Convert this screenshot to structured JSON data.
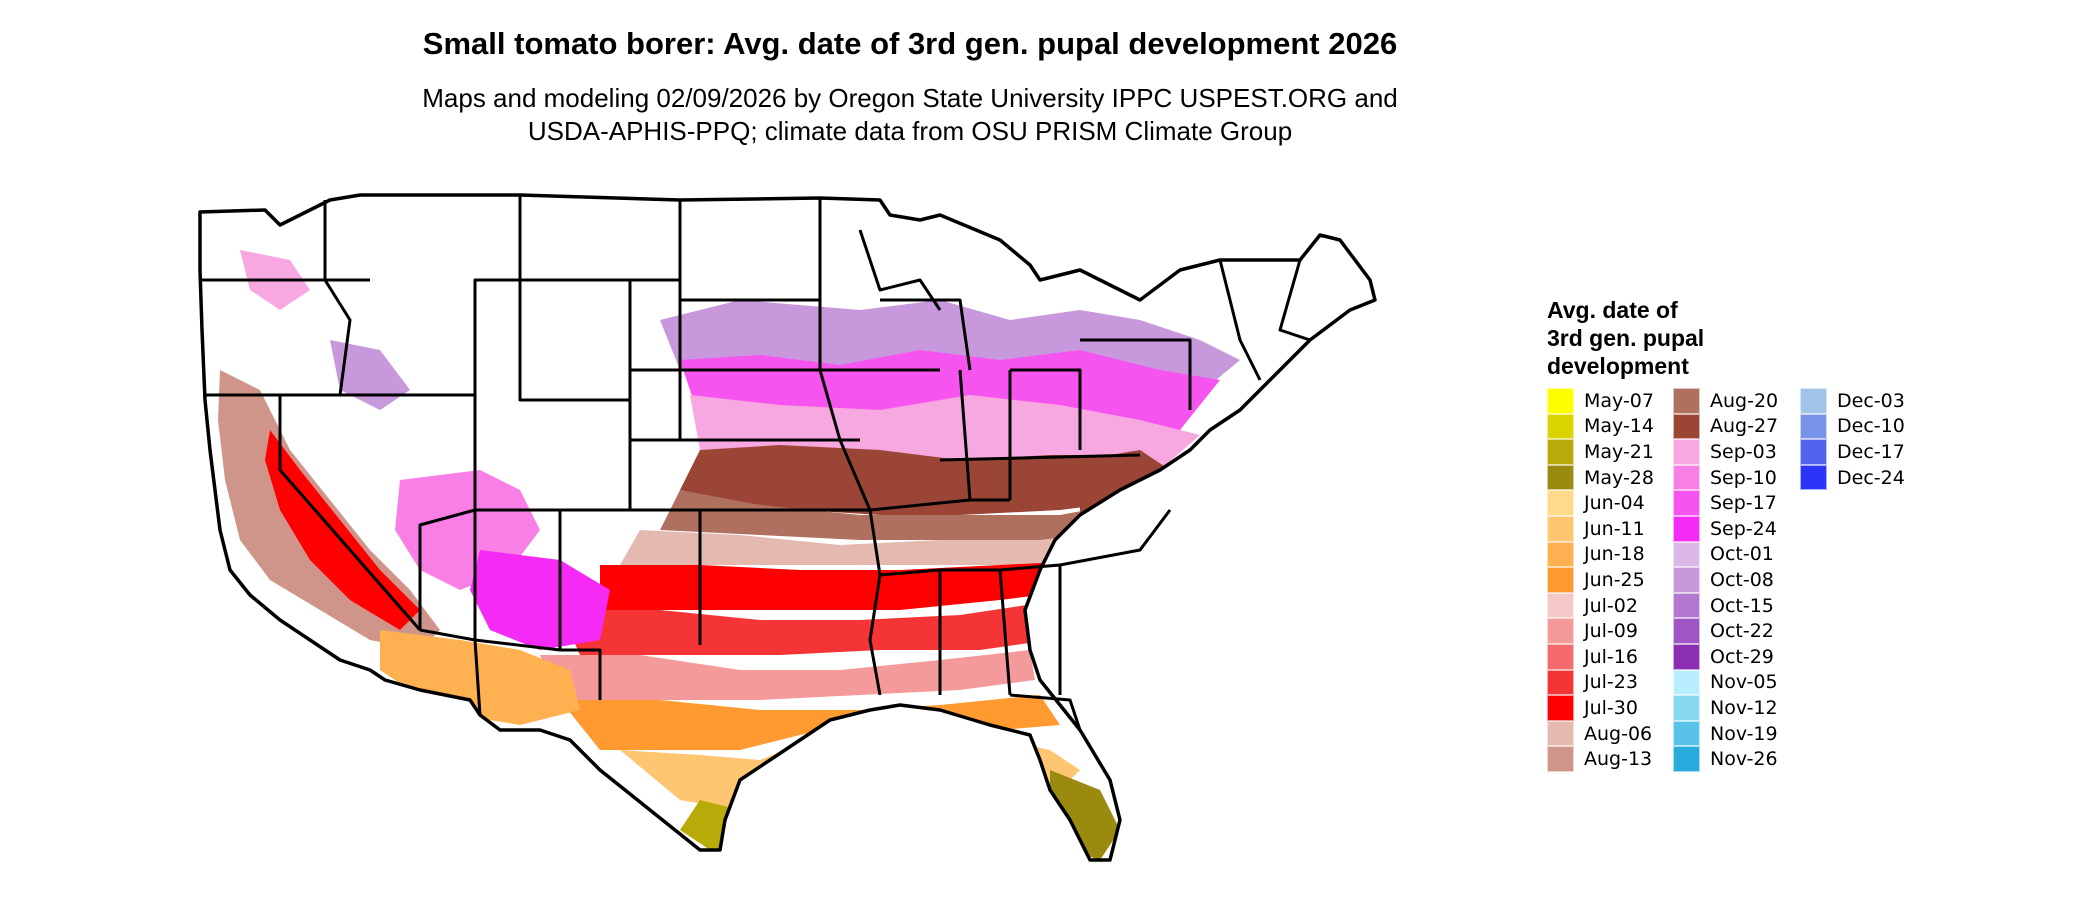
{
  "map": {
    "title": "Small tomato borer: Avg. date of 3rd gen. pupal development 2026",
    "subtitle_line1": "Maps and modeling 02/09/2026 by Oregon State University IPPC USPEST.ORG and",
    "subtitle_line2": "USDA-APHIS-PPQ; climate data from OSU PRISM Climate Group"
  },
  "legend": {
    "title_line1": "Avg. date of",
    "title_line2": "3rd gen. pupal",
    "title_line3": "development",
    "items": [
      {
        "label": "May-07",
        "color": "#ffff00"
      },
      {
        "label": "May-14",
        "color": "#dcd400"
      },
      {
        "label": "May-21",
        "color": "#b8aa08"
      },
      {
        "label": "May-28",
        "color": "#9a8a10"
      },
      {
        "label": "Jun-04",
        "color": "#ffd98c"
      },
      {
        "label": "Jun-11",
        "color": "#ffc671"
      },
      {
        "label": "Jun-18",
        "color": "#ffb050"
      },
      {
        "label": "Jun-25",
        "color": "#ff9a30"
      },
      {
        "label": "Jul-02",
        "color": "#f5c8c8"
      },
      {
        "label": "Jul-09",
        "color": "#f59a9a"
      },
      {
        "label": "Jul-16",
        "color": "#f56a6a"
      },
      {
        "label": "Jul-23",
        "color": "#f53535"
      },
      {
        "label": "Jul-30",
        "color": "#ff0000"
      },
      {
        "label": "Aug-06",
        "color": "#e3b9b0"
      },
      {
        "label": "Aug-13",
        "color": "#cf958a"
      },
      {
        "label": "Aug-20",
        "color": "#b07060"
      },
      {
        "label": "Aug-27",
        "color": "#9a4535"
      },
      {
        "label": "Sep-03",
        "color": "#f7a8e0"
      },
      {
        "label": "Sep-10",
        "color": "#f77fe6"
      },
      {
        "label": "Sep-17",
        "color": "#f555ee"
      },
      {
        "label": "Sep-24",
        "color": "#f52af5"
      },
      {
        "label": "Oct-01",
        "color": "#dcb8e8"
      },
      {
        "label": "Oct-08",
        "color": "#c898dc"
      },
      {
        "label": "Oct-15",
        "color": "#b278d0"
      },
      {
        "label": "Oct-22",
        "color": "#a055c4"
      },
      {
        "label": "Oct-29",
        "color": "#8c2eb4"
      },
      {
        "label": "Nov-05",
        "color": "#b8ecff"
      },
      {
        "label": "Nov-12",
        "color": "#88d8f2"
      },
      {
        "label": "Nov-19",
        "color": "#58c2e8"
      },
      {
        "label": "Nov-26",
        "color": "#28aadd"
      },
      {
        "label": "Dec-03",
        "color": "#a0c4e8"
      },
      {
        "label": "Dec-10",
        "color": "#7894e8"
      },
      {
        "label": "Dec-17",
        "color": "#5064f0"
      },
      {
        "label": "Dec-24",
        "color": "#2a35f7"
      }
    ]
  }
}
